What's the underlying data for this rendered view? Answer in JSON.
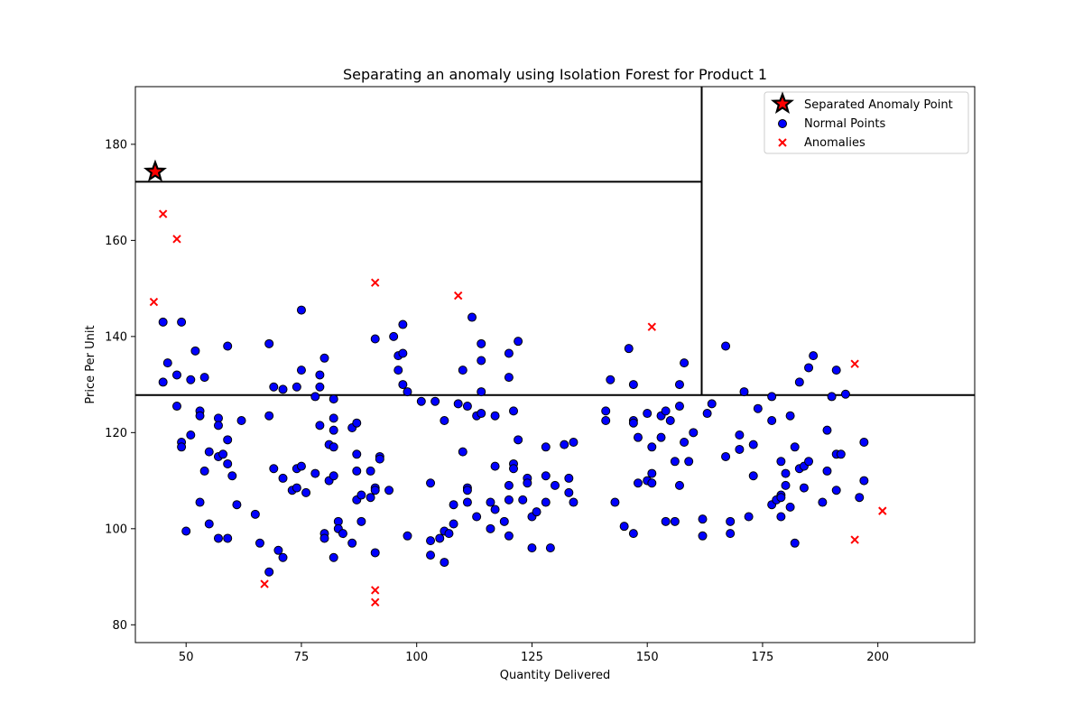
{
  "chart_data": {
    "type": "scatter",
    "title": "Separating an anomaly using Isolation Forest for Product 1",
    "xlabel": "Quantity Delivered",
    "ylabel": "Price Per Unit",
    "xlim": [
      39,
      221
    ],
    "ylim": [
      76.3,
      192.0
    ],
    "xticks": [
      50,
      75,
      100,
      125,
      150,
      175,
      200
    ],
    "yticks": [
      80,
      100,
      120,
      140,
      160,
      180
    ],
    "grid": false,
    "legend_position": "upper-right",
    "colors": {
      "normal_fill": "#0000ff",
      "normal_edge": "#000000",
      "anomaly": "#ff0000",
      "separated_fill": "#ff0000",
      "separated_edge": "#000000",
      "split_line": "#000000"
    },
    "series": [
      {
        "name": "Separated Anomaly Point",
        "marker": "star",
        "points": [
          [
            43.3,
            174.3
          ]
        ]
      },
      {
        "name": "Normal Points",
        "marker": "circle",
        "points": [
          [
            45,
            143
          ],
          [
            46,
            134.5
          ],
          [
            45,
            130.5
          ],
          [
            48,
            132
          ],
          [
            49,
            143
          ],
          [
            48,
            125.5
          ],
          [
            49,
            118
          ],
          [
            49,
            117
          ],
          [
            50,
            99.5
          ],
          [
            51,
            119.5
          ],
          [
            51,
            131
          ],
          [
            52,
            137
          ],
          [
            53,
            124.5
          ],
          [
            53,
            123.5
          ],
          [
            53,
            105.5
          ],
          [
            54,
            131.5
          ],
          [
            54,
            112
          ],
          [
            55,
            116
          ],
          [
            55,
            101
          ],
          [
            57,
            123
          ],
          [
            57,
            121.5
          ],
          [
            57,
            115
          ],
          [
            57,
            98
          ],
          [
            58,
            115.5
          ],
          [
            59,
            138
          ],
          [
            59,
            118.5
          ],
          [
            59,
            113.5
          ],
          [
            59,
            98
          ],
          [
            60,
            111
          ],
          [
            61,
            105
          ],
          [
            62,
            122.5
          ],
          [
            65,
            103
          ],
          [
            66,
            97
          ],
          [
            68,
            138.5
          ],
          [
            68,
            123.5
          ],
          [
            68,
            91
          ],
          [
            69,
            129.5
          ],
          [
            69,
            112.5
          ],
          [
            70,
            95.5
          ],
          [
            71,
            129
          ],
          [
            71,
            110.5
          ],
          [
            71,
            94
          ],
          [
            73,
            108
          ],
          [
            74,
            129.5
          ],
          [
            74,
            112.5
          ],
          [
            74,
            108.5
          ],
          [
            75,
            145.5
          ],
          [
            75,
            133
          ],
          [
            75,
            113
          ],
          [
            76,
            107.5
          ],
          [
            78,
            127.5
          ],
          [
            78,
            111.5
          ],
          [
            79,
            132
          ],
          [
            79,
            129.5
          ],
          [
            79,
            121.5
          ],
          [
            80,
            135.5
          ],
          [
            80,
            99
          ],
          [
            80,
            98
          ],
          [
            81,
            117.5
          ],
          [
            81,
            110
          ],
          [
            82,
            127
          ],
          [
            82,
            123
          ],
          [
            82,
            120.5
          ],
          [
            82,
            117
          ],
          [
            82,
            111
          ],
          [
            82,
            94
          ],
          [
            83,
            101.5
          ],
          [
            83,
            100
          ],
          [
            84,
            99
          ],
          [
            86,
            121
          ],
          [
            86,
            97
          ],
          [
            87,
            122
          ],
          [
            87,
            115.5
          ],
          [
            87,
            112
          ],
          [
            87,
            106
          ],
          [
            88,
            107
          ],
          [
            88,
            101.5
          ],
          [
            90,
            112
          ],
          [
            90,
            106.5
          ],
          [
            91,
            139.5
          ],
          [
            91,
            108.5
          ],
          [
            91,
            108
          ],
          [
            91,
            95
          ],
          [
            92,
            115
          ],
          [
            92,
            114.5
          ],
          [
            94,
            108
          ],
          [
            95,
            140
          ],
          [
            96,
            136
          ],
          [
            96,
            133
          ],
          [
            97,
            142.5
          ],
          [
            97,
            136.5
          ],
          [
            97,
            130
          ],
          [
            98,
            128.5
          ],
          [
            98,
            98.5
          ],
          [
            101,
            126.5
          ],
          [
            103,
            109.5
          ],
          [
            103,
            97.5
          ],
          [
            103,
            94.5
          ],
          [
            104,
            126.5
          ],
          [
            105,
            98
          ],
          [
            106,
            122.5
          ],
          [
            106,
            99.5
          ],
          [
            106,
            93
          ],
          [
            107,
            99
          ],
          [
            108,
            105
          ],
          [
            108,
            101
          ],
          [
            109,
            126
          ],
          [
            110,
            133
          ],
          [
            110,
            116
          ],
          [
            111,
            125.5
          ],
          [
            111,
            108.5
          ],
          [
            111,
            108
          ],
          [
            111,
            105.5
          ],
          [
            112,
            144
          ],
          [
            113,
            123.5
          ],
          [
            113,
            102.5
          ],
          [
            114,
            138.5
          ],
          [
            114,
            135
          ],
          [
            114,
            128.5
          ],
          [
            114,
            124
          ],
          [
            116,
            105.5
          ],
          [
            116,
            100
          ],
          [
            117,
            123.5
          ],
          [
            117,
            113
          ],
          [
            117,
            104
          ],
          [
            119,
            101.5
          ],
          [
            120,
            136.5
          ],
          [
            120,
            131.5
          ],
          [
            120,
            109
          ],
          [
            120,
            106
          ],
          [
            120,
            98.5
          ],
          [
            121,
            124.5
          ],
          [
            121,
            113.5
          ],
          [
            121,
            112.5
          ],
          [
            122,
            139
          ],
          [
            122,
            118.5
          ],
          [
            123,
            106
          ],
          [
            124,
            110.5
          ],
          [
            124,
            109.5
          ],
          [
            125,
            102.5
          ],
          [
            125,
            96
          ],
          [
            126,
            103.5
          ],
          [
            128,
            117
          ],
          [
            128,
            111
          ],
          [
            128,
            105.5
          ],
          [
            129,
            96
          ],
          [
            130,
            109
          ],
          [
            132,
            117.5
          ],
          [
            133,
            110.5
          ],
          [
            133,
            107.5
          ],
          [
            134,
            118
          ],
          [
            134,
            105.5
          ],
          [
            141,
            124.5
          ],
          [
            141,
            122.5
          ],
          [
            142,
            131
          ],
          [
            143,
            105.5
          ],
          [
            145,
            100.5
          ],
          [
            146,
            137.5
          ],
          [
            147,
            130
          ],
          [
            147,
            122.5
          ],
          [
            147,
            122
          ],
          [
            147,
            99
          ],
          [
            148,
            119
          ],
          [
            148,
            109.5
          ],
          [
            150,
            124
          ],
          [
            150,
            110
          ],
          [
            151,
            117
          ],
          [
            151,
            111.5
          ],
          [
            151,
            109.5
          ],
          [
            153,
            123.5
          ],
          [
            153,
            119
          ],
          [
            154,
            124.5
          ],
          [
            154,
            101.5
          ],
          [
            155,
            122.5
          ],
          [
            156,
            114
          ],
          [
            156,
            101.5
          ],
          [
            157,
            130
          ],
          [
            157,
            125.5
          ],
          [
            157,
            109
          ],
          [
            158,
            134.5
          ],
          [
            158,
            118
          ],
          [
            159,
            114
          ],
          [
            160,
            120
          ],
          [
            162,
            102
          ],
          [
            162,
            98.5
          ],
          [
            163,
            124
          ],
          [
            164,
            126
          ],
          [
            167,
            138
          ],
          [
            167,
            115
          ],
          [
            168,
            101.5
          ],
          [
            168,
            99
          ],
          [
            170,
            119.5
          ],
          [
            170,
            116.5
          ],
          [
            171,
            128.5
          ],
          [
            172,
            102.5
          ],
          [
            173,
            117.5
          ],
          [
            173,
            111
          ],
          [
            174,
            125
          ],
          [
            177,
            127.5
          ],
          [
            177,
            122.5
          ],
          [
            177,
            105
          ],
          [
            178,
            106
          ],
          [
            179,
            114
          ],
          [
            179,
            107
          ],
          [
            179,
            106.5
          ],
          [
            179,
            102.5
          ],
          [
            180,
            111.5
          ],
          [
            180,
            109
          ],
          [
            181,
            123.5
          ],
          [
            181,
            104.5
          ],
          [
            182,
            117
          ],
          [
            182,
            97
          ],
          [
            183,
            130.5
          ],
          [
            183,
            112.5
          ],
          [
            184,
            113
          ],
          [
            184,
            108.5
          ],
          [
            185,
            133.5
          ],
          [
            185,
            114
          ],
          [
            186,
            136
          ],
          [
            188,
            105.5
          ],
          [
            189,
            120.5
          ],
          [
            189,
            112
          ],
          [
            190,
            127.5
          ],
          [
            191,
            133
          ],
          [
            191,
            115.5
          ],
          [
            191,
            108
          ],
          [
            192,
            115.5
          ],
          [
            193,
            128
          ],
          [
            196,
            106.5
          ],
          [
            197,
            118
          ],
          [
            197,
            110
          ]
        ]
      },
      {
        "name": "Anomalies",
        "marker": "x",
        "points": [
          [
            45,
            165.5
          ],
          [
            48,
            160.3
          ],
          [
            43,
            147.2
          ],
          [
            91,
            151.2
          ],
          [
            109,
            148.5
          ],
          [
            151,
            142
          ],
          [
            195,
            134.3
          ],
          [
            67,
            88.5
          ],
          [
            91,
            87.2
          ],
          [
            91,
            84.7
          ],
          [
            201,
            103.7
          ],
          [
            195,
            97.7
          ]
        ]
      }
    ],
    "split_lines": [
      {
        "orientation": "horizontal",
        "y": 127.8,
        "x_from": 39,
        "x_to": 221
      },
      {
        "orientation": "vertical",
        "x": 161.8,
        "y_from": 127.8,
        "y_to": 192.0
      },
      {
        "orientation": "horizontal",
        "y": 172.2,
        "x_from": 39,
        "x_to": 161.8
      }
    ]
  }
}
